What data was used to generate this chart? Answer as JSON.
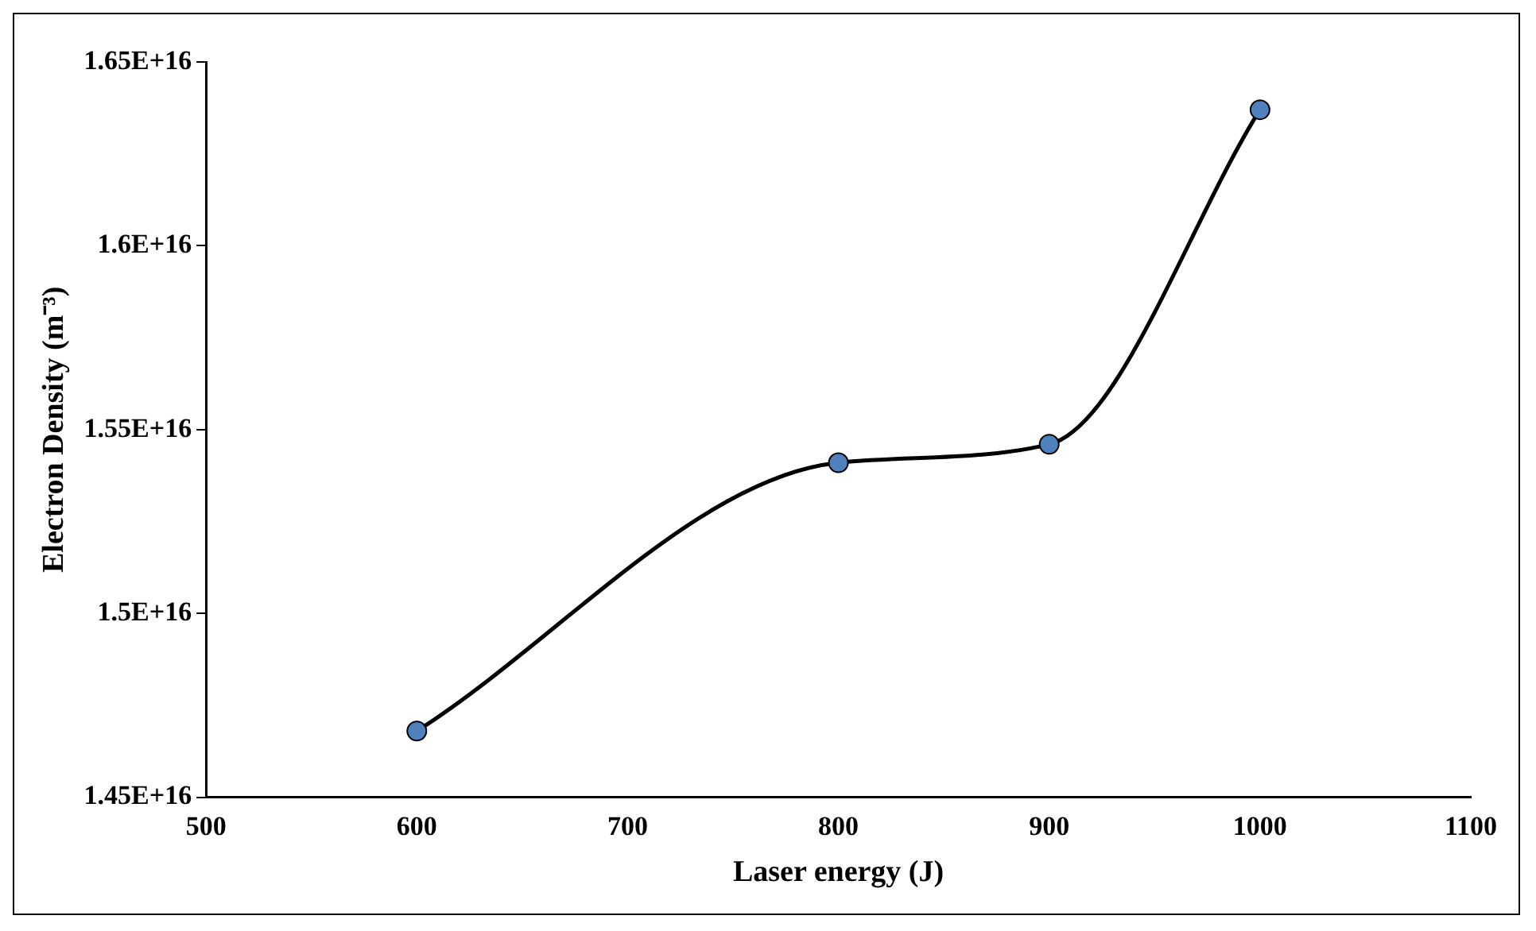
{
  "chart_data": {
    "type": "line",
    "xlabel": "Laser energy (J)",
    "ylabel": "Electron Density (m⁻³)",
    "x": [
      600,
      800,
      900,
      1000
    ],
    "series": [
      {
        "color": "#000000",
        "values": [
          14680000000000000,
          15410000000000000,
          15460000000000000,
          16370000000000000
        ]
      }
    ],
    "marker": "circle",
    "line_style": "solid",
    "grid": false,
    "legend": false,
    "xlim": [
      500,
      1100
    ],
    "xticks": [
      500,
      600,
      700,
      800,
      900,
      1000,
      1100
    ],
    "ylim": [
      14500000000000000,
      16500000000000000
    ],
    "yticks": [
      {
        "value": 14500000000000000,
        "label": "1.45E+16"
      },
      {
        "value": 15000000000000000,
        "label": "1.5E+16"
      },
      {
        "value": 15500000000000000,
        "label": "1.55E+16"
      },
      {
        "value": 16000000000000000,
        "label": "1.6E+16"
      },
      {
        "value": 16500000000000000,
        "label": "1.65E+16"
      }
    ]
  }
}
